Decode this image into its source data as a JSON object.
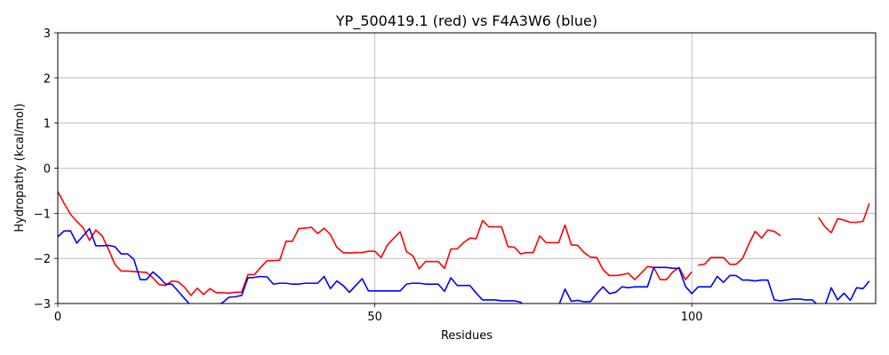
{
  "chart_data": {
    "type": "line",
    "title": "YP_500419.1 (red) vs F4A3W6 (blue)",
    "xlabel": "Residues",
    "ylabel": "Hydropathy (kcal/mol)",
    "xlim": [
      0,
      129
    ],
    "ylim": [
      -3,
      3
    ],
    "x_ticks": [
      0,
      50,
      100
    ],
    "y_ticks": [
      -3,
      -2,
      -1,
      0,
      1,
      2,
      3
    ],
    "grid": true,
    "series": [
      {
        "color": "#ff0000",
        "points": [
          [
            0,
            -0.52
          ],
          [
            1,
            -0.78
          ],
          [
            2,
            -1.02
          ],
          [
            3,
            -1.18
          ],
          [
            4,
            -1.32
          ],
          [
            5,
            -1.6
          ],
          [
            6,
            -1.37
          ],
          [
            7,
            -1.5
          ],
          [
            8,
            -1.8
          ],
          [
            9,
            -2.13
          ],
          [
            10,
            -2.28
          ],
          [
            11,
            -2.28
          ],
          [
            12,
            -2.29
          ],
          [
            13,
            -2.3
          ],
          [
            14,
            -2.31
          ],
          [
            15,
            -2.43
          ],
          [
            16,
            -2.58
          ],
          [
            17,
            -2.6
          ],
          [
            18,
            -2.5
          ],
          [
            19,
            -2.52
          ],
          [
            20,
            -2.64
          ],
          [
            21,
            -2.82
          ],
          [
            22,
            -2.66
          ],
          [
            23,
            -2.8
          ],
          [
            24,
            -2.67
          ],
          [
            25,
            -2.76
          ],
          [
            26,
            -2.76
          ],
          [
            27,
            -2.77
          ],
          [
            28,
            -2.75
          ],
          [
            29,
            -2.75
          ],
          [
            30,
            -2.36
          ],
          [
            31,
            -2.36
          ],
          [
            32,
            -2.2
          ],
          [
            33,
            -2.05
          ],
          [
            34,
            -2.05
          ],
          [
            35,
            -2.04
          ],
          [
            36,
            -1.62
          ],
          [
            37,
            -1.62
          ],
          [
            38,
            -1.34
          ],
          [
            39,
            -1.33
          ],
          [
            40,
            -1.31
          ],
          [
            41,
            -1.45
          ],
          [
            42,
            -1.33
          ],
          [
            43,
            -1.47
          ],
          [
            44,
            -1.75
          ],
          [
            45,
            -1.87
          ],
          [
            46,
            -1.88
          ],
          [
            47,
            -1.87
          ],
          [
            48,
            -1.87
          ],
          [
            49,
            -1.84
          ],
          [
            50,
            -1.84
          ],
          [
            51,
            -1.98
          ],
          [
            52,
            -1.7
          ],
          [
            53,
            -1.55
          ],
          [
            54,
            -1.41
          ],
          [
            55,
            -1.85
          ],
          [
            56,
            -1.94
          ],
          [
            57,
            -2.23
          ],
          [
            58,
            -2.07
          ],
          [
            59,
            -2.07
          ],
          [
            60,
            -2.07
          ],
          [
            61,
            -2.22
          ],
          [
            62,
            -1.79
          ],
          [
            63,
            -1.79
          ],
          [
            64,
            -1.65
          ],
          [
            65,
            -1.55
          ],
          [
            66,
            -1.56
          ],
          [
            67,
            -1.16
          ],
          [
            68,
            -1.3
          ],
          [
            69,
            -1.3
          ],
          [
            70,
            -1.3
          ],
          [
            71,
            -1.74
          ],
          [
            72,
            -1.75
          ],
          [
            73,
            -1.9
          ],
          [
            74,
            -1.87
          ],
          [
            75,
            -1.87
          ],
          [
            76,
            -1.5
          ],
          [
            77,
            -1.65
          ],
          [
            78,
            -1.65
          ],
          [
            79,
            -1.65
          ],
          [
            80,
            -1.26
          ],
          [
            81,
            -1.7
          ],
          [
            82,
            -1.71
          ],
          [
            83,
            -1.87
          ],
          [
            84,
            -1.97
          ],
          [
            85,
            -1.98
          ],
          [
            86,
            -2.25
          ],
          [
            87,
            -2.38
          ],
          [
            88,
            -2.38
          ],
          [
            89,
            -2.36
          ],
          [
            90,
            -2.33
          ],
          [
            91,
            -2.47
          ],
          [
            92,
            -2.33
          ],
          [
            93,
            -2.18
          ],
          [
            94,
            -2.2
          ],
          [
            95,
            -2.47
          ],
          [
            96,
            -2.47
          ],
          [
            97,
            -2.3
          ],
          [
            98,
            -2.2
          ],
          [
            99,
            -2.47
          ],
          [
            100,
            -2.3
          ],
          null,
          [
            101,
            -2.15
          ],
          [
            102,
            -2.13
          ],
          [
            103,
            -1.98
          ],
          [
            104,
            -1.98
          ],
          [
            105,
            -1.98
          ],
          [
            106,
            -2.13
          ],
          [
            107,
            -2.13
          ],
          [
            108,
            -2.0
          ],
          [
            109,
            -1.68
          ],
          [
            110,
            -1.4
          ],
          [
            111,
            -1.55
          ],
          [
            112,
            -1.37
          ],
          [
            113,
            -1.4
          ],
          [
            114,
            -1.5
          ],
          null,
          [
            120,
            -1.09
          ],
          [
            121,
            -1.3
          ],
          [
            122,
            -1.43
          ],
          [
            123,
            -1.12
          ],
          [
            124,
            -1.15
          ],
          [
            125,
            -1.2
          ],
          [
            126,
            -1.2
          ],
          [
            127,
            -1.18
          ],
          [
            128,
            -0.78
          ]
        ]
      },
      {
        "color": "#0000ff",
        "points": [
          [
            0,
            -1.52
          ],
          [
            1,
            -1.39
          ],
          [
            2,
            -1.39
          ],
          [
            3,
            -1.66
          ],
          [
            4,
            -1.5
          ],
          [
            5,
            -1.34
          ],
          [
            6,
            -1.72
          ],
          [
            7,
            -1.72
          ],
          [
            8,
            -1.71
          ],
          [
            9,
            -1.74
          ],
          [
            10,
            -1.9
          ],
          [
            11,
            -1.9
          ],
          [
            12,
            -2.02
          ],
          [
            13,
            -2.47
          ],
          [
            14,
            -2.47
          ],
          [
            15,
            -2.3
          ],
          [
            16,
            -2.42
          ],
          [
            17,
            -2.57
          ],
          [
            18,
            -2.57
          ],
          [
            19,
            -2.73
          ],
          [
            20,
            -2.89
          ],
          [
            21,
            -3.05
          ],
          null,
          [
            25,
            -3.05
          ],
          [
            26,
            -2.98
          ],
          [
            27,
            -2.86
          ],
          [
            28,
            -2.85
          ],
          [
            29,
            -2.82
          ],
          [
            30,
            -2.43
          ],
          [
            31,
            -2.42
          ],
          [
            32,
            -2.4
          ],
          [
            33,
            -2.41
          ],
          [
            34,
            -2.57
          ],
          [
            35,
            -2.55
          ],
          [
            36,
            -2.55
          ],
          [
            37,
            -2.57
          ],
          [
            38,
            -2.57
          ],
          [
            39,
            -2.55
          ],
          [
            40,
            -2.55
          ],
          [
            41,
            -2.55
          ],
          [
            42,
            -2.4
          ],
          [
            43,
            -2.67
          ],
          [
            44,
            -2.5
          ],
          [
            45,
            -2.6
          ],
          [
            46,
            -2.75
          ],
          [
            47,
            -2.6
          ],
          [
            48,
            -2.45
          ],
          [
            49,
            -2.72
          ],
          [
            50,
            -2.72
          ],
          [
            51,
            -2.72
          ],
          [
            52,
            -2.72
          ],
          [
            53,
            -2.72
          ],
          [
            54,
            -2.72
          ],
          [
            55,
            -2.57
          ],
          [
            56,
            -2.55
          ],
          [
            57,
            -2.55
          ],
          [
            58,
            -2.57
          ],
          [
            59,
            -2.57
          ],
          [
            60,
            -2.57
          ],
          [
            61,
            -2.73
          ],
          [
            62,
            -2.43
          ],
          [
            63,
            -2.6
          ],
          [
            64,
            -2.6
          ],
          [
            65,
            -2.6
          ],
          [
            66,
            -2.77
          ],
          [
            67,
            -2.92
          ],
          [
            68,
            -2.92
          ],
          [
            69,
            -2.92
          ],
          [
            70,
            -2.94
          ],
          [
            71,
            -2.94
          ],
          [
            72,
            -2.94
          ],
          [
            73,
            -2.97
          ],
          [
            74,
            -3.1
          ],
          null,
          [
            79,
            -3.05
          ],
          [
            80,
            -2.68
          ],
          [
            81,
            -2.95
          ],
          [
            82,
            -2.93
          ],
          [
            83,
            -2.96
          ],
          [
            84,
            -2.96
          ],
          [
            85,
            -2.78
          ],
          [
            86,
            -2.63
          ],
          [
            87,
            -2.78
          ],
          [
            88,
            -2.75
          ],
          [
            89,
            -2.63
          ],
          [
            90,
            -2.65
          ],
          [
            91,
            -2.63
          ],
          [
            92,
            -2.63
          ],
          [
            93,
            -2.63
          ],
          [
            94,
            -2.2
          ],
          [
            95,
            -2.2
          ],
          [
            96,
            -2.2
          ],
          [
            97,
            -2.22
          ],
          [
            98,
            -2.22
          ],
          [
            99,
            -2.62
          ],
          [
            100,
            -2.78
          ],
          [
            101,
            -2.63
          ],
          [
            102,
            -2.63
          ],
          [
            103,
            -2.63
          ],
          [
            104,
            -2.4
          ],
          [
            105,
            -2.53
          ],
          [
            106,
            -2.38
          ],
          [
            107,
            -2.38
          ],
          [
            108,
            -2.48
          ],
          [
            109,
            -2.48
          ],
          [
            110,
            -2.5
          ],
          [
            111,
            -2.48
          ],
          [
            112,
            -2.48
          ],
          [
            113,
            -2.92
          ],
          [
            114,
            -2.94
          ],
          [
            115,
            -2.92
          ],
          [
            116,
            -2.9
          ],
          [
            117,
            -2.9
          ],
          [
            118,
            -2.92
          ],
          [
            119,
            -2.92
          ],
          [
            120,
            -3.05
          ],
          null,
          [
            121,
            -3.05
          ],
          [
            122,
            -2.65
          ],
          [
            123,
            -2.92
          ],
          [
            124,
            -2.77
          ],
          [
            125,
            -2.93
          ],
          [
            126,
            -2.65
          ],
          [
            127,
            -2.67
          ],
          [
            128,
            -2.5
          ]
        ]
      }
    ]
  }
}
